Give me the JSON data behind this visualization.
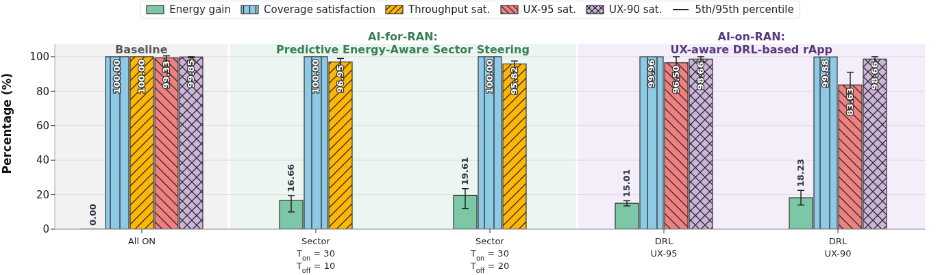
{
  "chart_data": {
    "type": "bar",
    "ylabel": "Percentage (%)",
    "categories": [
      "All ON",
      "Sector\nT$_{on}$ = 30\nT$_{off}$ = 10",
      "Sector\nT$_{on}$ = 30\nT$_{off}$ = 20",
      "DRL\nUX-95",
      "DRL\nUX-90"
    ],
    "series": [
      {
        "name": "Energy gain",
        "color": "#7cc8a6",
        "values": [
          0,
          16.66,
          19.61,
          15.01,
          18.23
        ],
        "value_labels": [
          "0.00",
          "16.66",
          "19.61",
          "15.01",
          "18.23"
        ],
        "errors": [
          null,
          [
            10,
            19.5
          ],
          [
            12,
            23.5
          ],
          [
            13.5,
            16.5
          ],
          [
            14,
            22.5
          ]
        ]
      },
      {
        "name": "Coverage satisfaction",
        "color": "#8ecae6",
        "values": [
          100,
          100,
          100,
          99.96,
          99.88
        ],
        "value_labels": [
          "100.00",
          "100.00",
          "100.00",
          "99.96",
          "99.88"
        ]
      },
      {
        "name": "Throughput sat.",
        "color": "#ffb703",
        "values": [
          100,
          96.95,
          95.82,
          null,
          null
        ],
        "value_labels": [
          "100.00",
          "96.95",
          "95.82",
          null,
          null
        ],
        "errors": [
          null,
          [
            93.5,
            99
          ],
          [
            93,
            97.5
          ],
          null,
          null
        ]
      },
      {
        "name": "UX-95 sat.",
        "color": "#f08080",
        "values": [
          99.33,
          null,
          null,
          96.5,
          83.63
        ],
        "value_labels": [
          "99.33",
          null,
          null,
          "96.50",
          "83.63"
        ],
        "errors": [
          [
            97.5,
            100.5
          ],
          null,
          null,
          [
            92,
            100
          ],
          [
            75,
            91
          ]
        ]
      },
      {
        "name": "UX-90 sat.",
        "color": "#cdb4db",
        "values": [
          99.85,
          null,
          null,
          98.66,
          98.66
        ],
        "value_labels": [
          "99.85",
          null,
          null,
          "98.66",
          "98.66"
        ],
        "errors": [
          [
            99.5,
            100
          ],
          null,
          null,
          [
            97,
            100
          ],
          [
            96,
            100
          ]
        ]
      }
    ],
    "ylim": [
      0,
      107.5
    ],
    "yticks": [
      0,
      20,
      40,
      60,
      80,
      100
    ],
    "grid": "y",
    "legend": "top",
    "annotations": [
      "5th/95th percentile"
    ],
    "bands": [
      {
        "axis": "x",
        "from": "All ON",
        "to": "All ON",
        "label": "Baseline",
        "color": "#f2f2f3"
      },
      {
        "axis": "x",
        "from": "Sector\nT$_{on}$ = 30\nT$_{off}$ = 10",
        "to": "Sector\nT$_{on}$ = 30\nT$_{off}$ = 20",
        "label": "AI-for-RAN:\nPredictive Energy-Aware Sector Steering",
        "color": "#ecf6f0"
      },
      {
        "axis": "x",
        "from": "DRL\nUX-95",
        "to": "DRL\nUX-90",
        "label": "AI-on-RAN:\nUX-aware DRL-based rApp",
        "color": "#f3eef9"
      }
    ]
  }
}
